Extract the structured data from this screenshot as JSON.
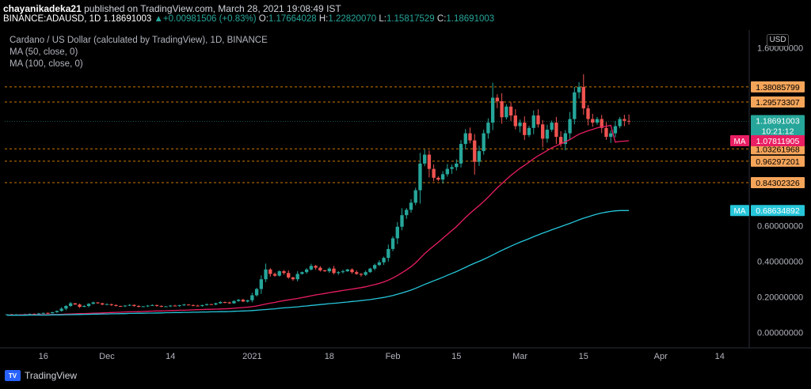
{
  "header": {
    "user": "chayanikadeka21",
    "published": " published on TradingView.com, March 28, 2021 19:08:49 IST",
    "symbol": "BINANCE:ADAUSD, 1D",
    "last": "1.18691003",
    "arrow": "▲",
    "change": "+0.00981506 (+0.83%)",
    "o_label": "O:",
    "o": "1.17664028",
    "h_label": "H:",
    "h": "1.22820070",
    "l_label": "L:",
    "l": "1.15817529",
    "c_label": "C:",
    "c": "1.18691003"
  },
  "legend": {
    "title": "Cardano / US Dollar (calculated by TradingView), 1D, BINANCE",
    "ma50": "MA (50, close, 0)",
    "ma100": "MA (100, close, 0)"
  },
  "currency_button": "USD",
  "footer": {
    "brand": "TradingView",
    "brand_mark": "TV"
  },
  "chart_data": {
    "type": "candlestick",
    "title": "Cardano / US Dollar (calculated by TradingView), 1D, BINANCE",
    "ylim": [
      -0.05,
      1.7
    ],
    "y_ticks": [
      0.0,
      0.2,
      0.4,
      0.6,
      1.6
    ],
    "y_tick_labels": [
      "0.00000000",
      "0.20000000",
      "0.40000000",
      "0.60000000",
      "1.60000000"
    ],
    "x_ticks": [
      {
        "label": "16",
        "index": 8
      },
      {
        "label": "Dec",
        "index": 22
      },
      {
        "label": "14",
        "index": 36
      },
      {
        "label": "2021",
        "index": 54
      },
      {
        "label": "18",
        "index": 71
      },
      {
        "label": "Feb",
        "index": 85
      },
      {
        "label": "15",
        "index": 99
      },
      {
        "label": "Mar",
        "index": 113
      },
      {
        "label": "15",
        "index": 127
      },
      {
        "label": "Apr",
        "index": 144
      },
      {
        "label": "14",
        "index": 157
      }
    ],
    "n_slots": 164,
    "horizontal_levels": [
      1.38085799,
      1.29573307,
      1.03261968,
      0.96297201,
      0.84302326
    ],
    "horizontal_level_labels": [
      "1.38085799",
      "1.29573307",
      "1.03261968",
      "0.96297201",
      "0.84302326"
    ],
    "level_color": "#ff9800",
    "last_price": 1.18691003,
    "last_price_label": "1.18691003",
    "countdown": "10:21:12",
    "ma50": {
      "name": "MA",
      "value": 1.07811905,
      "label": "1.07811905",
      "color": "#e91e63"
    },
    "ma100": {
      "name": "MA",
      "value": 0.68634892,
      "label": "0.68634892",
      "color": "#26c6da"
    },
    "up_color": "#26a69a",
    "down_color": "#ef5350",
    "closes": [
      0.103,
      0.101,
      0.102,
      0.1,
      0.104,
      0.106,
      0.105,
      0.108,
      0.111,
      0.109,
      0.115,
      0.122,
      0.135,
      0.15,
      0.165,
      0.158,
      0.145,
      0.15,
      0.162,
      0.17,
      0.165,
      0.158,
      0.16,
      0.155,
      0.15,
      0.148,
      0.152,
      0.156,
      0.15,
      0.145,
      0.148,
      0.152,
      0.155,
      0.15,
      0.146,
      0.148,
      0.152,
      0.15,
      0.154,
      0.158,
      0.155,
      0.152,
      0.15,
      0.155,
      0.16,
      0.158,
      0.165,
      0.172,
      0.17,
      0.165,
      0.178,
      0.185,
      0.175,
      0.182,
      0.21,
      0.245,
      0.3,
      0.355,
      0.33,
      0.32,
      0.345,
      0.335,
      0.31,
      0.3,
      0.33,
      0.34,
      0.355,
      0.375,
      0.365,
      0.35,
      0.345,
      0.36,
      0.335,
      0.34,
      0.345,
      0.355,
      0.34,
      0.33,
      0.325,
      0.34,
      0.36,
      0.38,
      0.395,
      0.42,
      0.47,
      0.53,
      0.595,
      0.66,
      0.69,
      0.73,
      0.8,
      0.95,
      1.0,
      0.92,
      0.87,
      0.86,
      0.89,
      0.92,
      0.93,
      0.95,
      1.06,
      1.12,
      1.08,
      0.96,
      1.02,
      1.12,
      1.18,
      1.32,
      1.3,
      1.21,
      1.27,
      1.22,
      1.16,
      1.18,
      1.11,
      1.15,
      1.22,
      1.17,
      1.09,
      1.14,
      1.18,
      1.1,
      1.06,
      1.12,
      1.2,
      1.35,
      1.38,
      1.26,
      1.2,
      1.18,
      1.2,
      1.15,
      1.1,
      1.12,
      1.16,
      1.2,
      1.19,
      1.187
    ],
    "ma50_values": [
      0.099,
      0.099,
      0.099,
      0.1,
      0.1,
      0.1,
      0.1,
      0.101,
      0.101,
      0.101,
      0.102,
      0.102,
      0.103,
      0.104,
      0.105,
      0.106,
      0.107,
      0.107,
      0.108,
      0.109,
      0.11,
      0.111,
      0.112,
      0.113,
      0.114,
      0.115,
      0.116,
      0.117,
      0.117,
      0.118,
      0.119,
      0.12,
      0.121,
      0.122,
      0.122,
      0.123,
      0.124,
      0.125,
      0.126,
      0.126,
      0.127,
      0.128,
      0.129,
      0.13,
      0.131,
      0.131,
      0.132,
      0.133,
      0.134,
      0.135,
      0.137,
      0.139,
      0.141,
      0.143,
      0.146,
      0.15,
      0.155,
      0.161,
      0.166,
      0.17,
      0.175,
      0.18,
      0.184,
      0.188,
      0.192,
      0.197,
      0.202,
      0.207,
      0.212,
      0.216,
      0.22,
      0.225,
      0.229,
      0.233,
      0.237,
      0.241,
      0.245,
      0.249,
      0.253,
      0.258,
      0.264,
      0.27,
      0.277,
      0.285,
      0.295,
      0.307,
      0.321,
      0.337,
      0.353,
      0.371,
      0.392,
      0.418,
      0.444,
      0.466,
      0.487,
      0.508,
      0.53,
      0.552,
      0.574,
      0.596,
      0.621,
      0.647,
      0.671,
      0.692,
      0.714,
      0.737,
      0.761,
      0.788,
      0.814,
      0.837,
      0.861,
      0.883,
      0.903,
      0.923,
      0.94,
      0.958,
      0.977,
      0.994,
      1.008,
      1.023,
      1.038,
      1.05,
      1.061,
      1.072,
      1.085,
      1.1,
      1.115,
      1.125,
      1.134,
      1.142,
      1.15,
      1.156,
      1.16,
      1.165,
      1.07,
      1.074,
      1.076,
      1.078
    ],
    "ma100_values": [
      0.098,
      0.098,
      0.098,
      0.098,
      0.098,
      0.099,
      0.099,
      0.099,
      0.099,
      0.099,
      0.1,
      0.1,
      0.1,
      0.101,
      0.101,
      0.102,
      0.102,
      0.103,
      0.103,
      0.104,
      0.104,
      0.105,
      0.105,
      0.106,
      0.106,
      0.107,
      0.107,
      0.108,
      0.108,
      0.109,
      0.109,
      0.11,
      0.11,
      0.111,
      0.111,
      0.112,
      0.112,
      0.113,
      0.113,
      0.114,
      0.114,
      0.115,
      0.115,
      0.116,
      0.116,
      0.117,
      0.117,
      0.118,
      0.118,
      0.119,
      0.12,
      0.121,
      0.122,
      0.123,
      0.124,
      0.126,
      0.128,
      0.13,
      0.132,
      0.134,
      0.137,
      0.139,
      0.141,
      0.143,
      0.145,
      0.148,
      0.15,
      0.153,
      0.155,
      0.158,
      0.16,
      0.163,
      0.165,
      0.167,
      0.17,
      0.172,
      0.175,
      0.177,
      0.18,
      0.183,
      0.186,
      0.19,
      0.194,
      0.198,
      0.203,
      0.209,
      0.216,
      0.223,
      0.231,
      0.239,
      0.249,
      0.26,
      0.271,
      0.281,
      0.291,
      0.301,
      0.311,
      0.322,
      0.333,
      0.343,
      0.355,
      0.367,
      0.379,
      0.39,
      0.401,
      0.412,
      0.424,
      0.437,
      0.45,
      0.462,
      0.474,
      0.486,
      0.497,
      0.508,
      0.518,
      0.528,
      0.539,
      0.549,
      0.559,
      0.568,
      0.578,
      0.587,
      0.596,
      0.605,
      0.614,
      0.624,
      0.634,
      0.643,
      0.651,
      0.659,
      0.666,
      0.672,
      0.677,
      0.681,
      0.684,
      0.686,
      0.686,
      0.686
    ]
  }
}
